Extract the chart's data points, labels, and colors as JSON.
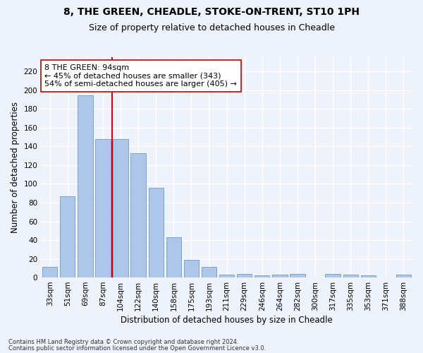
{
  "title_line1": "8, THE GREEN, CHEADLE, STOKE-ON-TRENT, ST10 1PH",
  "title_line2": "Size of property relative to detached houses in Cheadle",
  "xlabel": "Distribution of detached houses by size in Cheadle",
  "ylabel": "Number of detached properties",
  "categories": [
    "33sqm",
    "51sqm",
    "69sqm",
    "87sqm",
    "104sqm",
    "122sqm",
    "140sqm",
    "158sqm",
    "175sqm",
    "193sqm",
    "211sqm",
    "229sqm",
    "246sqm",
    "264sqm",
    "282sqm",
    "300sqm",
    "317sqm",
    "335sqm",
    "353sqm",
    "371sqm",
    "388sqm"
  ],
  "values": [
    11,
    87,
    195,
    148,
    148,
    133,
    96,
    43,
    19,
    11,
    3,
    4,
    2,
    3,
    4,
    0,
    4,
    3,
    2,
    0,
    3
  ],
  "bar_color": "#aec6e8",
  "bar_edge_color": "#5a8fc2",
  "vline_color": "#cc0000",
  "annotation_text": "8 THE GREEN: 94sqm\n← 45% of detached houses are smaller (343)\n54% of semi-detached houses are larger (405) →",
  "annotation_box_color": "#ffffff",
  "annotation_box_edge_color": "#cc0000",
  "footnote_line1": "Contains HM Land Registry data © Crown copyright and database right 2024.",
  "footnote_line2": "Contains public sector information licensed under the Open Government Licence v3.0.",
  "ylim": [
    0,
    235
  ],
  "yticks": [
    0,
    20,
    40,
    60,
    80,
    100,
    120,
    140,
    160,
    180,
    200,
    220
  ],
  "background_color": "#eef2fb",
  "grid_color": "#ffffff",
  "title_fontsize": 10,
  "subtitle_fontsize": 9,
  "axis_label_fontsize": 8.5,
  "tick_fontsize": 7.5,
  "annotation_fontsize": 8
}
